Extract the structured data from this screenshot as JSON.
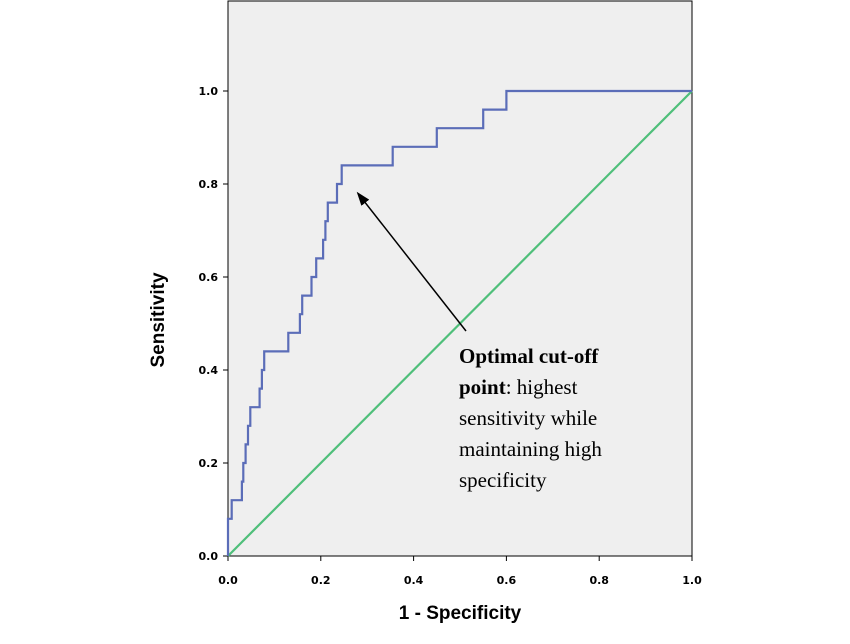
{
  "chart_data": {
    "type": "line",
    "xlabel": "1 - Specificity",
    "ylabel": "Sensitivity",
    "xlim": [
      0.0,
      1.0
    ],
    "ylim": [
      0.0,
      1.0
    ],
    "grid": false,
    "x_ticks": [
      0.0,
      0.2,
      0.4,
      0.6,
      0.8,
      1.0
    ],
    "y_ticks": [
      0.0,
      0.2,
      0.4,
      0.6,
      0.8,
      1.0
    ],
    "x_tick_labels": [
      "0.0",
      "0.2",
      "0.4",
      "0.6",
      "0.8",
      "1.0"
    ],
    "y_tick_labels": [
      "0.0",
      "0.2",
      "0.4",
      "0.6",
      "0.8",
      "1.0"
    ],
    "plot_background": "#efefef",
    "series": [
      {
        "color": "#5b6db8",
        "points": [
          [
            0.0,
            0.0
          ],
          [
            0.0,
            0.08
          ],
          [
            0.008,
            0.08
          ],
          [
            0.008,
            0.12
          ],
          [
            0.03,
            0.12
          ],
          [
            0.03,
            0.16
          ],
          [
            0.033,
            0.16
          ],
          [
            0.033,
            0.2
          ],
          [
            0.038,
            0.2
          ],
          [
            0.038,
            0.24
          ],
          [
            0.043,
            0.24
          ],
          [
            0.043,
            0.28
          ],
          [
            0.048,
            0.28
          ],
          [
            0.048,
            0.32
          ],
          [
            0.068,
            0.32
          ],
          [
            0.068,
            0.36
          ],
          [
            0.073,
            0.36
          ],
          [
            0.073,
            0.4
          ],
          [
            0.078,
            0.4
          ],
          [
            0.078,
            0.44
          ],
          [
            0.13,
            0.44
          ],
          [
            0.13,
            0.48
          ],
          [
            0.155,
            0.48
          ],
          [
            0.155,
            0.52
          ],
          [
            0.16,
            0.52
          ],
          [
            0.16,
            0.56
          ],
          [
            0.18,
            0.56
          ],
          [
            0.18,
            0.6
          ],
          [
            0.19,
            0.6
          ],
          [
            0.19,
            0.64
          ],
          [
            0.205,
            0.64
          ],
          [
            0.205,
            0.68
          ],
          [
            0.21,
            0.68
          ],
          [
            0.21,
            0.72
          ],
          [
            0.215,
            0.72
          ],
          [
            0.215,
            0.76
          ],
          [
            0.235,
            0.76
          ],
          [
            0.235,
            0.8
          ],
          [
            0.245,
            0.8
          ],
          [
            0.245,
            0.84
          ],
          [
            0.355,
            0.84
          ],
          [
            0.355,
            0.88
          ],
          [
            0.45,
            0.88
          ],
          [
            0.45,
            0.92
          ],
          [
            0.55,
            0.92
          ],
          [
            0.55,
            0.96
          ],
          [
            0.6,
            0.96
          ],
          [
            0.6,
            1.0
          ],
          [
            1.0,
            1.0
          ]
        ]
      },
      {
        "color": "#4fbf7a",
        "points": [
          [
            0.0,
            0.0
          ],
          [
            1.0,
            1.0
          ]
        ]
      }
    ],
    "annotation": {
      "bold_text": "Optimal cut-off point",
      "text": ": highest sensitivity while maintaining high specificity",
      "lines": [
        {
          "bold": "Optimal cut-off",
          "normal": ""
        },
        {
          "bold": "point",
          "normal": ": highest"
        },
        {
          "bold": "",
          "normal": "sensitivity while"
        },
        {
          "bold": "",
          "normal": "maintaining high"
        },
        {
          "bold": "",
          "normal": "specificity"
        }
      ],
      "arrow_target": [
        0.28,
        0.78
      ],
      "arrow_color": "#000000"
    }
  }
}
